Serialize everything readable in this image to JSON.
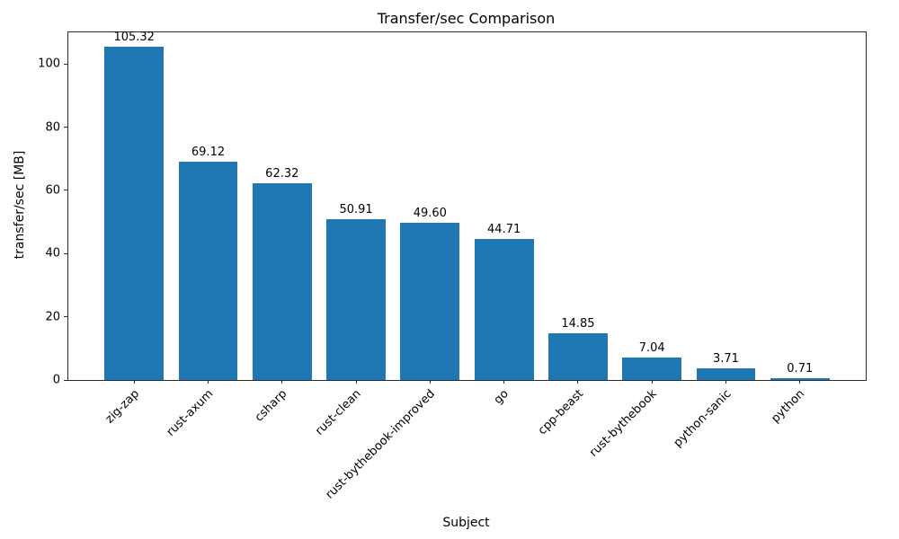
{
  "chart_data": {
    "type": "bar",
    "title": "Transfer/sec Comparison",
    "xlabel": "Subject",
    "ylabel": "transfer/sec [MB]",
    "categories": [
      "zig-zap",
      "rust-axum",
      "csharp",
      "rust-clean",
      "rust-bythebook-improved",
      "go",
      "cpp-beast",
      "rust-bythebook",
      "python-sanic",
      "python"
    ],
    "values": [
      105.32,
      69.12,
      62.32,
      50.91,
      49.6,
      44.71,
      14.85,
      7.04,
      3.71,
      0.71
    ],
    "value_labels": [
      "105.32",
      "69.12",
      "62.32",
      "50.91",
      "49.60",
      "44.71",
      "14.85",
      "7.04",
      "3.71",
      "0.71"
    ],
    "bar_color": "#1f77b4",
    "ylim": [
      0,
      110
    ],
    "yticks": [
      0,
      20,
      40,
      60,
      80,
      100
    ],
    "ytick_labels": [
      "0",
      "20",
      "40",
      "60",
      "80",
      "100"
    ],
    "grid": false,
    "legend": null
  }
}
